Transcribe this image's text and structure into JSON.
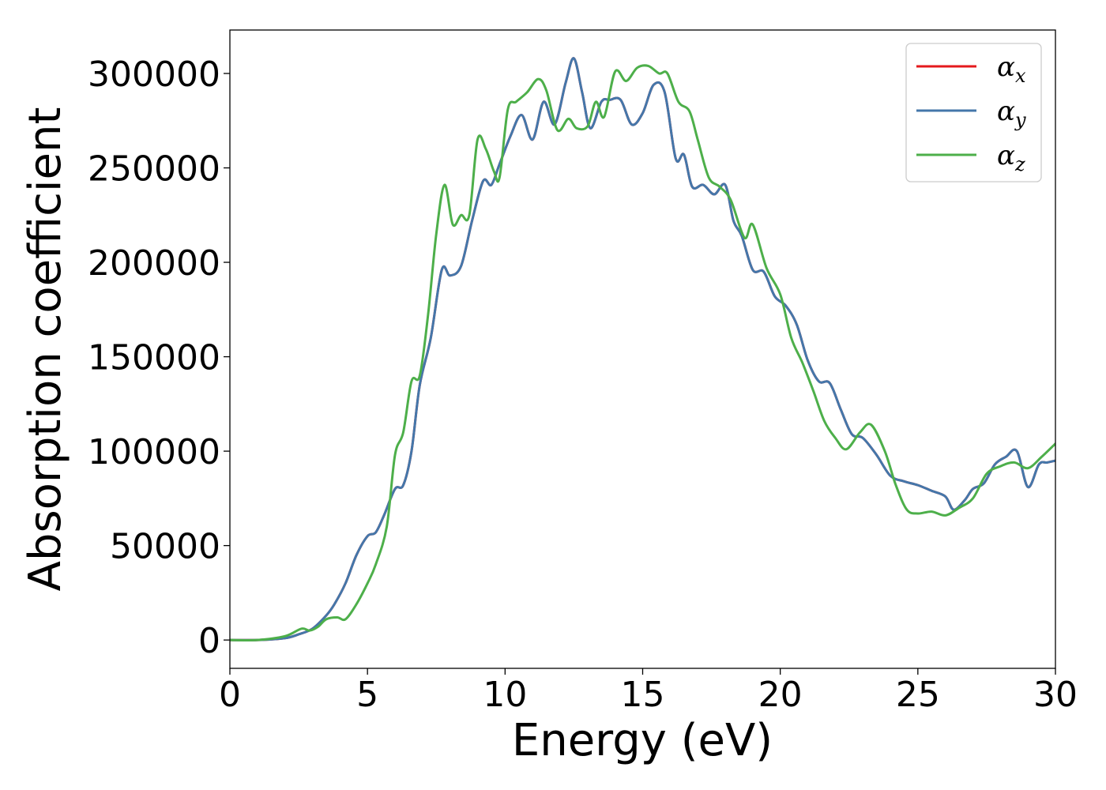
{
  "chart_data": {
    "type": "line",
    "title": "",
    "xlabel": "Energy (eV)",
    "ylabel": "Absorption coefficient",
    "xlim": [
      0,
      30
    ],
    "ylim": [
      -15000,
      323000
    ],
    "xticks": [
      0,
      5,
      10,
      15,
      20,
      25,
      30
    ],
    "yticks": [
      0,
      50000,
      100000,
      150000,
      200000,
      250000,
      300000
    ],
    "grid": false,
    "legend_position": "top-right",
    "series": [
      {
        "name": "αx",
        "name_base": "α",
        "name_sub": "x",
        "color": "#e41a1c",
        "x": [
          0,
          1,
          2,
          2.5,
          3,
          3.5,
          3.8,
          4.2,
          4.6,
          5,
          5.3,
          5.6,
          6,
          6.3,
          6.6,
          6.9,
          7.3,
          7.7,
          8,
          8.4,
          8.8,
          9.2,
          9.5,
          9.8,
          10.2,
          10.6,
          11,
          11.4,
          11.8,
          12.2,
          12.5,
          12.8,
          13.1,
          13.5,
          13.8,
          14.2,
          14.6,
          15,
          15.4,
          15.8,
          16.2,
          16.5,
          16.8,
          17.2,
          17.6,
          18,
          18.3,
          18.6,
          19,
          19.4,
          19.8,
          20.2,
          20.6,
          21,
          21.4,
          21.8,
          22.2,
          22.6,
          23,
          23.5,
          24,
          24.5,
          25,
          25.5,
          26,
          26.3,
          26.7,
          27,
          27.4,
          27.8,
          28.2,
          28.6,
          29,
          29.4,
          29.7,
          30
        ],
        "y": [
          0,
          0,
          1000,
          3000,
          6000,
          13000,
          19000,
          30000,
          45000,
          55000,
          57000,
          66000,
          80000,
          82000,
          100000,
          135000,
          160000,
          196000,
          193000,
          198000,
          222000,
          243000,
          241000,
          252000,
          267000,
          278000,
          265000,
          285000,
          273000,
          295000,
          308000,
          290000,
          271000,
          285000,
          286000,
          286000,
          273000,
          279000,
          294000,
          290000,
          255000,
          257000,
          240000,
          241000,
          236000,
          241000,
          222000,
          214000,
          196000,
          195000,
          182000,
          177000,
          167000,
          148000,
          137000,
          136000,
          122000,
          109000,
          107000,
          98000,
          87000,
          84000,
          82000,
          79000,
          76000,
          69000,
          74000,
          80000,
          83000,
          93000,
          97000,
          100000,
          81000,
          93000,
          94000,
          95000
        ]
      },
      {
        "name": "αy",
        "name_base": "α",
        "name_sub": "y",
        "color": "#4477aa",
        "x": [
          0,
          1,
          2,
          2.5,
          3,
          3.5,
          3.8,
          4.2,
          4.6,
          5,
          5.3,
          5.6,
          6,
          6.3,
          6.6,
          6.9,
          7.3,
          7.7,
          8,
          8.4,
          8.8,
          9.2,
          9.5,
          9.8,
          10.2,
          10.6,
          11,
          11.4,
          11.8,
          12.2,
          12.5,
          12.8,
          13.1,
          13.5,
          13.8,
          14.2,
          14.6,
          15,
          15.4,
          15.8,
          16.2,
          16.5,
          16.8,
          17.2,
          17.6,
          18,
          18.3,
          18.6,
          19,
          19.4,
          19.8,
          20.2,
          20.6,
          21,
          21.4,
          21.8,
          22.2,
          22.6,
          23,
          23.5,
          24,
          24.5,
          25,
          25.5,
          26,
          26.3,
          26.7,
          27,
          27.4,
          27.8,
          28.2,
          28.6,
          29,
          29.4,
          29.7,
          30
        ],
        "y": [
          0,
          0,
          1000,
          3000,
          6000,
          13000,
          19000,
          30000,
          45000,
          55000,
          57000,
          66000,
          80000,
          82000,
          100000,
          135000,
          160000,
          196000,
          193000,
          198000,
          222000,
          243000,
          241000,
          252000,
          267000,
          278000,
          265000,
          285000,
          273000,
          295000,
          308000,
          290000,
          271000,
          285000,
          286000,
          286000,
          273000,
          279000,
          294000,
          290000,
          255000,
          257000,
          240000,
          241000,
          236000,
          241000,
          222000,
          214000,
          196000,
          195000,
          182000,
          177000,
          167000,
          148000,
          137000,
          136000,
          122000,
          109000,
          107000,
          98000,
          87000,
          84000,
          82000,
          79000,
          76000,
          69000,
          74000,
          80000,
          83000,
          93000,
          97000,
          100000,
          81000,
          93000,
          94000,
          95000
        ]
      },
      {
        "name": "αz",
        "name_base": "α",
        "name_sub": "z",
        "color": "#4daf4a",
        "x": [
          0,
          1,
          2,
          2.6,
          2.9,
          3.2,
          3.5,
          3.9,
          4.2,
          4.6,
          5,
          5.3,
          5.7,
          6,
          6.3,
          6.6,
          6.9,
          7.2,
          7.5,
          7.8,
          8.1,
          8.4,
          8.7,
          9,
          9.3,
          9.6,
          9.8,
          10.1,
          10.4,
          10.8,
          11.2,
          11.5,
          11.9,
          12.3,
          12.6,
          13,
          13.3,
          13.6,
          14,
          14.4,
          14.8,
          15.2,
          15.6,
          15.9,
          16.3,
          16.7,
          17,
          17.4,
          17.8,
          18.2,
          18.7,
          19,
          19.5,
          20,
          20.4,
          20.8,
          21.2,
          21.6,
          22,
          22.4,
          22.9,
          23.3,
          23.8,
          24.2,
          24.6,
          25,
          25.5,
          26,
          26.5,
          27,
          27.5,
          28,
          28.5,
          29,
          29.5,
          30
        ],
        "y": [
          0,
          0,
          2000,
          6000,
          5000,
          7000,
          11000,
          12000,
          11000,
          19000,
          30000,
          40000,
          60000,
          98000,
          110000,
          137000,
          140000,
          172000,
          215000,
          241000,
          220000,
          225000,
          225000,
          265000,
          260000,
          248000,
          245000,
          281000,
          285000,
          290000,
          297000,
          291000,
          270000,
          276000,
          271000,
          272000,
          285000,
          277000,
          301000,
          296000,
          303000,
          304000,
          300000,
          300000,
          285000,
          280000,
          265000,
          245000,
          240000,
          233000,
          213000,
          220000,
          197000,
          183000,
          160000,
          147000,
          132000,
          116000,
          107000,
          101000,
          110000,
          114000,
          100000,
          82000,
          69000,
          67000,
          68000,
          66000,
          70000,
          75000,
          88000,
          92000,
          94000,
          91000,
          97000,
          104000
        ]
      }
    ]
  }
}
